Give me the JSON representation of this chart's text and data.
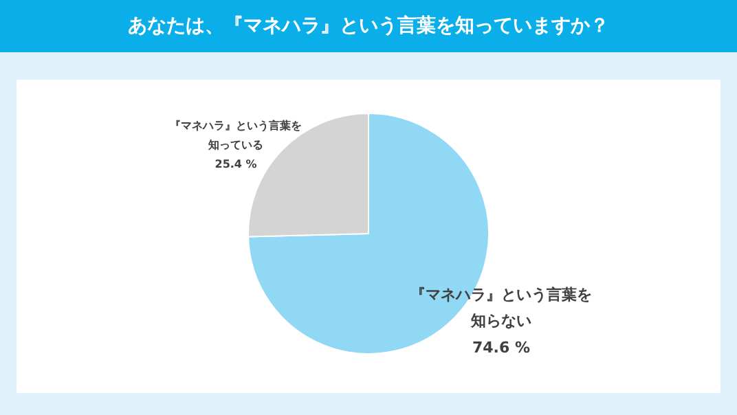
{
  "chart_data": {
    "type": "pie",
    "title": "あなたは、『マネハラ』という言葉を知っていますか？",
    "categories": [
      "『マネハラ』という言葉を知らない",
      "『マネハラ』という言葉を知っている"
    ],
    "values": [
      74.6,
      25.4
    ],
    "colors": [
      "#91d8f5",
      "#d4d4d4"
    ],
    "value_labels": [
      "74.6 %",
      "25.4 %"
    ],
    "legend": false
  }
}
